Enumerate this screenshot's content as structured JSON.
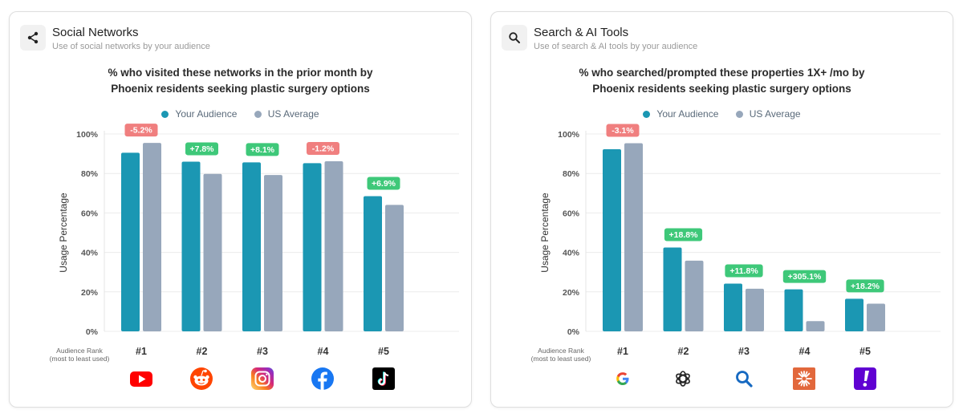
{
  "colors": {
    "audience": "#1b97b3",
    "us_average": "#97a7bb",
    "positive": "#3ec879",
    "negative": "#f07f7f",
    "grid": "#ececec"
  },
  "panels": [
    {
      "header": {
        "title": "Social Networks",
        "subtitle": "Use of social networks by your audience",
        "icon": "share-icon"
      },
      "rank_caption": [
        "Audience Rank",
        "(most to least used)"
      ],
      "chart_data": {
        "type": "bar",
        "title_lines": [
          "% who visited these networks in the prior month by",
          "Phoenix residents seeking plastic surgery options"
        ],
        "ylabel": "Usage Percentage",
        "ylim": [
          0,
          100
        ],
        "yticks": [
          "0%",
          "20%",
          "40%",
          "60%",
          "80%",
          "100%"
        ],
        "grid": true,
        "legend_position": "top-center",
        "categories": [
          "#1",
          "#2",
          "#3",
          "#4",
          "#5"
        ],
        "category_icons": [
          "youtube-icon",
          "reddit-icon",
          "instagram-icon",
          "facebook-icon",
          "tiktok-icon"
        ],
        "series": [
          {
            "name": "Your Audience",
            "values": [
              90.5,
              86,
              85.6,
              85.2,
              68.5
            ]
          },
          {
            "name": "US Average",
            "values": [
              95.5,
              79.8,
              79.2,
              86.2,
              64.1
            ]
          }
        ],
        "annotations": [
          "-5.2%",
          "+7.8%",
          "+8.1%",
          "-1.2%",
          "+6.9%"
        ]
      }
    },
    {
      "header": {
        "title": "Search & AI Tools",
        "subtitle": "Use of search & AI tools by your audience",
        "icon": "search-icon"
      },
      "rank_caption": [
        "Audience Rank",
        "(most to least used)"
      ],
      "chart_data": {
        "type": "bar",
        "title_lines": [
          "% who searched/prompted these properties 1X+ /mo by",
          "Phoenix residents seeking plastic surgery options"
        ],
        "ylabel": "Usage Percentage",
        "ylim": [
          0,
          100
        ],
        "yticks": [
          "0%",
          "20%",
          "40%",
          "60%",
          "80%",
          "100%"
        ],
        "grid": true,
        "legend_position": "top-center",
        "categories": [
          "#1",
          "#2",
          "#3",
          "#4",
          "#5"
        ],
        "category_icons": [
          "google-icon",
          "chatgpt-icon",
          "bing-search-icon",
          "claude-icon",
          "yahoo-icon"
        ],
        "series": [
          {
            "name": "Your Audience",
            "values": [
              92.3,
              42.5,
              24.2,
              21.3,
              16.5
            ]
          },
          {
            "name": "US Average",
            "values": [
              95.3,
              35.8,
              21.6,
              5.2,
              14
            ]
          }
        ],
        "annotations": [
          "-3.1%",
          "+18.8%",
          "+11.8%",
          "+305.1%",
          "+18.2%"
        ]
      }
    }
  ]
}
